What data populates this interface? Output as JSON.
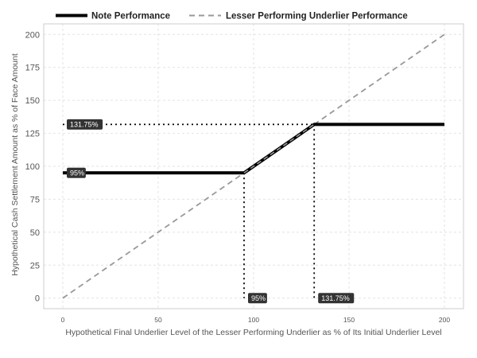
{
  "chart_data": {
    "type": "line",
    "title": "",
    "xlabel": "Hypothetical Final Underlier Level of the Lesser Performing Underlier as % of Its Initial Underlier Level",
    "ylabel": "Hypothetical Cash Settlement Amount as % of Face Amount",
    "xlim": [
      -10,
      210
    ],
    "ylim": [
      -8,
      208
    ],
    "x_ticks": [
      0,
      50,
      100,
      150,
      200
    ],
    "y_ticks": [
      0,
      25,
      50,
      75,
      100,
      125,
      150,
      175,
      200
    ],
    "grid": true,
    "legend_position": "top",
    "series": [
      {
        "name": "Note Performance",
        "style": "solid",
        "color": "#000000",
        "points": [
          [
            0,
            95
          ],
          [
            95,
            95
          ],
          [
            131.75,
            131.75
          ],
          [
            200,
            131.75
          ]
        ]
      },
      {
        "name": "Lesser Performing Underlier Performance",
        "style": "dashed",
        "color": "#999999",
        "points": [
          [
            0,
            0
          ],
          [
            200,
            200
          ]
        ]
      }
    ],
    "reference_lines": [
      {
        "from": [
          0,
          131.75
        ],
        "to": [
          131.75,
          131.75
        ]
      },
      {
        "from": [
          95,
          95
        ],
        "to": [
          95,
          0
        ]
      },
      {
        "from": [
          131.75,
          131.75
        ],
        "to": [
          131.75,
          0
        ]
      }
    ],
    "annotations": [
      {
        "text": "131.75%",
        "x": 0,
        "y": 131.75
      },
      {
        "text": "95%",
        "x": 0,
        "y": 95
      },
      {
        "text": "95%",
        "x": 95,
        "y": 0
      },
      {
        "text": "131.75%",
        "x": 131.75,
        "y": 0
      }
    ]
  }
}
